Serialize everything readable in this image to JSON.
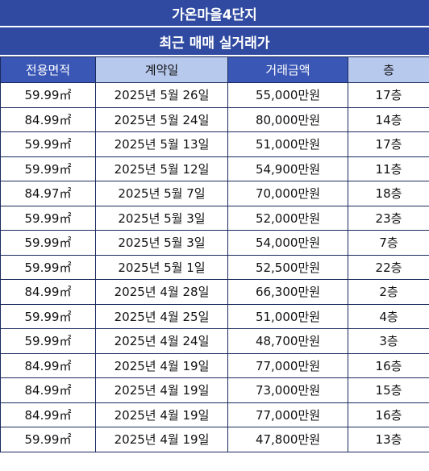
{
  "header": {
    "title": "가온마을4단지",
    "subtitle": "최근 매매 실거래가"
  },
  "columns": [
    {
      "label": "전용면적",
      "style": "dark"
    },
    {
      "label": "계약일",
      "style": "light"
    },
    {
      "label": "거래금액",
      "style": "dark"
    },
    {
      "label": "층",
      "style": "light"
    }
  ],
  "rows": [
    [
      "59.99㎡",
      "2025년 5월 26일",
      "55,000만원",
      "17층"
    ],
    [
      "84.99㎡",
      "2025년 5월 24일",
      "80,000만원",
      "14층"
    ],
    [
      "59.99㎡",
      "2025년 5월 13일",
      "51,000만원",
      "17층"
    ],
    [
      "59.99㎡",
      "2025년 5월 12일",
      "54,900만원",
      "11층"
    ],
    [
      "84.97㎡",
      "2025년 5월 7일",
      "70,000만원",
      "18층"
    ],
    [
      "59.99㎡",
      "2025년 5월 3일",
      "52,000만원",
      "23층"
    ],
    [
      "59.99㎡",
      "2025년 5월 3일",
      "54,000만원",
      "7층"
    ],
    [
      "59.99㎡",
      "2025년 5월 1일",
      "52,500만원",
      "22층"
    ],
    [
      "84.99㎡",
      "2025년 4월 28일",
      "66,300만원",
      "2층"
    ],
    [
      "59.99㎡",
      "2025년 4월 25일",
      "51,000만원",
      "4층"
    ],
    [
      "59.99㎡",
      "2025년 4월 24일",
      "48,700만원",
      "3층"
    ],
    [
      "84.99㎡",
      "2025년 4월 19일",
      "77,000만원",
      "16층"
    ],
    [
      "84.99㎡",
      "2025년 4월 19일",
      "73,000만원",
      "15층"
    ],
    [
      "84.99㎡",
      "2025년 4월 19일",
      "77,000만원",
      "16층"
    ],
    [
      "59.99㎡",
      "2025년 4월 19일",
      "47,800만원",
      "13층"
    ]
  ],
  "colors": {
    "title_bg": "#2F4AA0",
    "header_dark": "#3a57b6",
    "header_light": "#b8c9ee",
    "border": "#1b2a5c"
  }
}
